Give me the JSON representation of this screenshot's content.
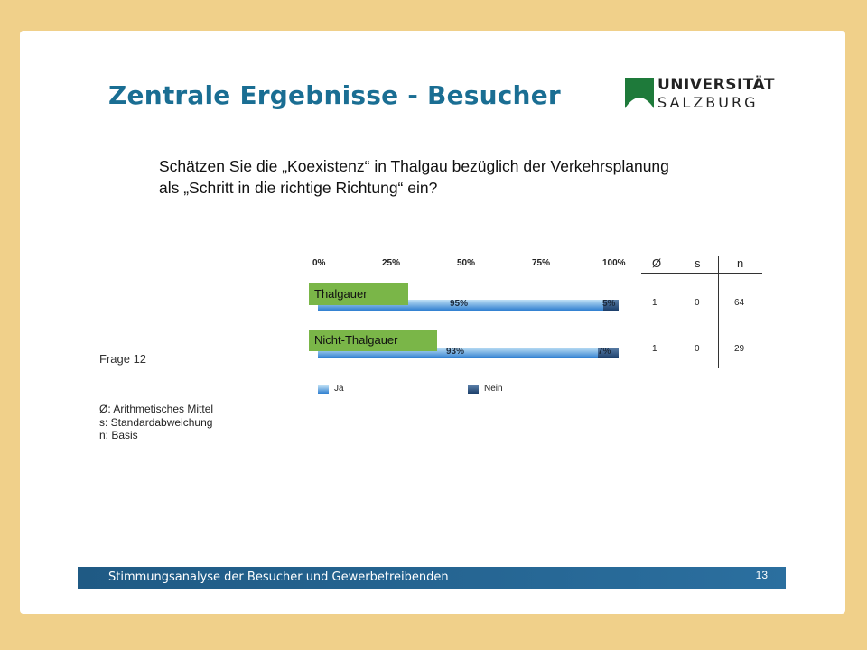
{
  "slide": {
    "title": "Zentrale Ergebnisse - Besucher",
    "logo": {
      "line1": "UNIVERSITÄT",
      "line2": "SALZBURG"
    },
    "question_line1": "Schätzen Sie die „Koexistenz“ in Thalgau bezüglich der Verkehrsplanung",
    "question_line2": "als „Schritt in die richtige Richtung“ ein?",
    "frage": "Frage 12",
    "notes": [
      "Ø: Arithmetisches Mittel",
      "s: Standardabweichung",
      "n: Basis"
    ],
    "footer_text": "Stimmungsanalyse der Besucher und Gewerbetreibenden",
    "page_number": "13"
  },
  "chart_data": {
    "type": "bar",
    "orientation": "horizontal-stacked",
    "scale_ticks": [
      "0%",
      "25%",
      "50%",
      "75%",
      "100%"
    ],
    "categories": [
      "Thalgauer",
      "Nicht-Thalgauer"
    ],
    "series": [
      {
        "name": "Ja",
        "values": [
          95,
          93
        ],
        "labels": [
          "95%",
          "93%"
        ],
        "color": "#2f7fd0"
      },
      {
        "name": "Nein",
        "values": [
          5,
          7
        ],
        "labels": [
          "5%",
          "7%"
        ],
        "color": "#1b3e6a"
      }
    ],
    "stats_headers": [
      "Ø",
      "s",
      "n"
    ],
    "stats": [
      {
        "mean": "1",
        "sd": "0",
        "n": "64"
      },
      {
        "mean": "1",
        "sd": "0",
        "n": "29"
      }
    ],
    "group_label_color": "#7ab648"
  },
  "colors": {
    "title": "#1a6e93",
    "frame": "#f0d08a",
    "footer": "#1f5a84",
    "logo_green": "#1e7a3a"
  }
}
